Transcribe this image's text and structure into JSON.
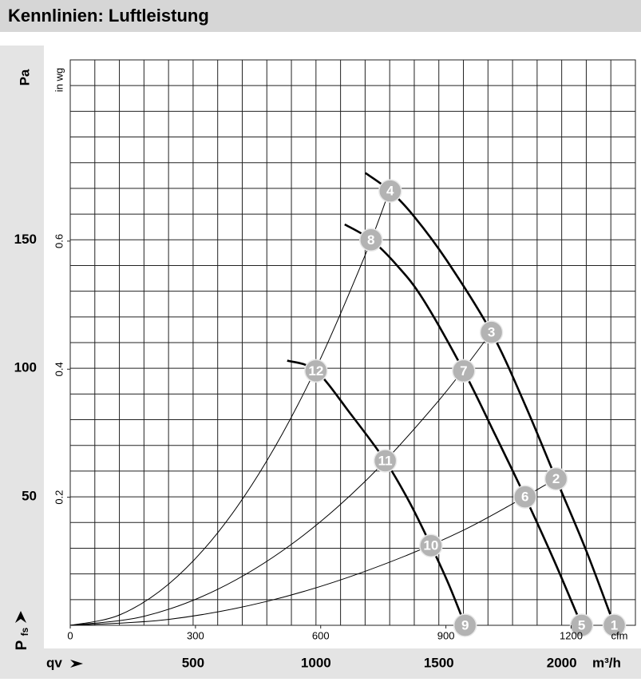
{
  "chart_data": {
    "type": "line",
    "title": "Kennlinien: Luftleistung",
    "xlabel": "m³/h",
    "xname": "qv",
    "xlim": [
      0,
      2300
    ],
    "xticks": [
      500,
      1000,
      1500,
      2000
    ],
    "x2label": "cfm",
    "x2lim": [
      0,
      1354
    ],
    "x2ticks": [
      0,
      300,
      600,
      900,
      1200
    ],
    "ylabel": "Pa",
    "yname": "P",
    "yname_sub": "fs",
    "ylim": [
      0,
      220
    ],
    "yticks": [
      50,
      100,
      150
    ],
    "y2label": "in wg",
    "y2lim": [
      0,
      0.883
    ],
    "y2ticks": [
      0.2,
      0.4,
      0.6
    ],
    "xgrid": 100,
    "ygrid": 10,
    "series": [
      {
        "color": "#000000",
        "width": 2.6,
        "x": [
          1201,
          1302,
          1400,
          1532,
          1714,
          1850,
          1977,
          2100,
          2214
        ],
        "values": [
          176,
          169,
          159,
          142,
          114,
          86,
          57,
          29,
          0
        ]
      },
      {
        "color": "#000000",
        "width": 2.6,
        "x": [
          1117,
          1224,
          1330,
          1435,
          1601,
          1730,
          1851,
          1970,
          2081
        ],
        "values": [
          156,
          150,
          140,
          127,
          99,
          74,
          50,
          25,
          0
        ]
      },
      {
        "color": "#000000",
        "width": 2.6,
        "x": [
          883,
          1000,
          1143,
          1282,
          1380,
          1468,
          1540,
          1607
        ],
        "values": [
          103,
          99,
          82,
          64,
          48,
          31,
          16,
          0
        ]
      },
      {
        "color": "#000000",
        "width": 1,
        "x": [
          0,
          200,
          400,
          600,
          800,
          1000,
          1200,
          1302
        ],
        "values": [
          0,
          4,
          16,
          36,
          64,
          100,
          144,
          170
        ]
      },
      {
        "color": "#000000",
        "width": 1,
        "x": [
          0,
          300,
          600,
          900,
          1200,
          1500,
          1714
        ],
        "values": [
          0,
          3.5,
          14,
          31.5,
          56,
          87.5,
          114
        ]
      },
      {
        "color": "#000000",
        "width": 1,
        "x": [
          0,
          400,
          800,
          1200,
          1600,
          1977
        ],
        "values": [
          0,
          2.3,
          9.3,
          21,
          37,
          57
        ]
      }
    ],
    "points": {
      "color": "#b3b3b3",
      "labels": [
        "1",
        "2",
        "3",
        "4",
        "5",
        "6",
        "7",
        "8",
        "9",
        "10",
        "11",
        "12"
      ],
      "x": [
        2214,
        1977,
        1714,
        1302,
        2081,
        1851,
        1601,
        1224,
        1607,
        1468,
        1282,
        1000
      ],
      "values": [
        0,
        57,
        114,
        169,
        0,
        50,
        99,
        150,
        0,
        31,
        64,
        99
      ]
    }
  }
}
